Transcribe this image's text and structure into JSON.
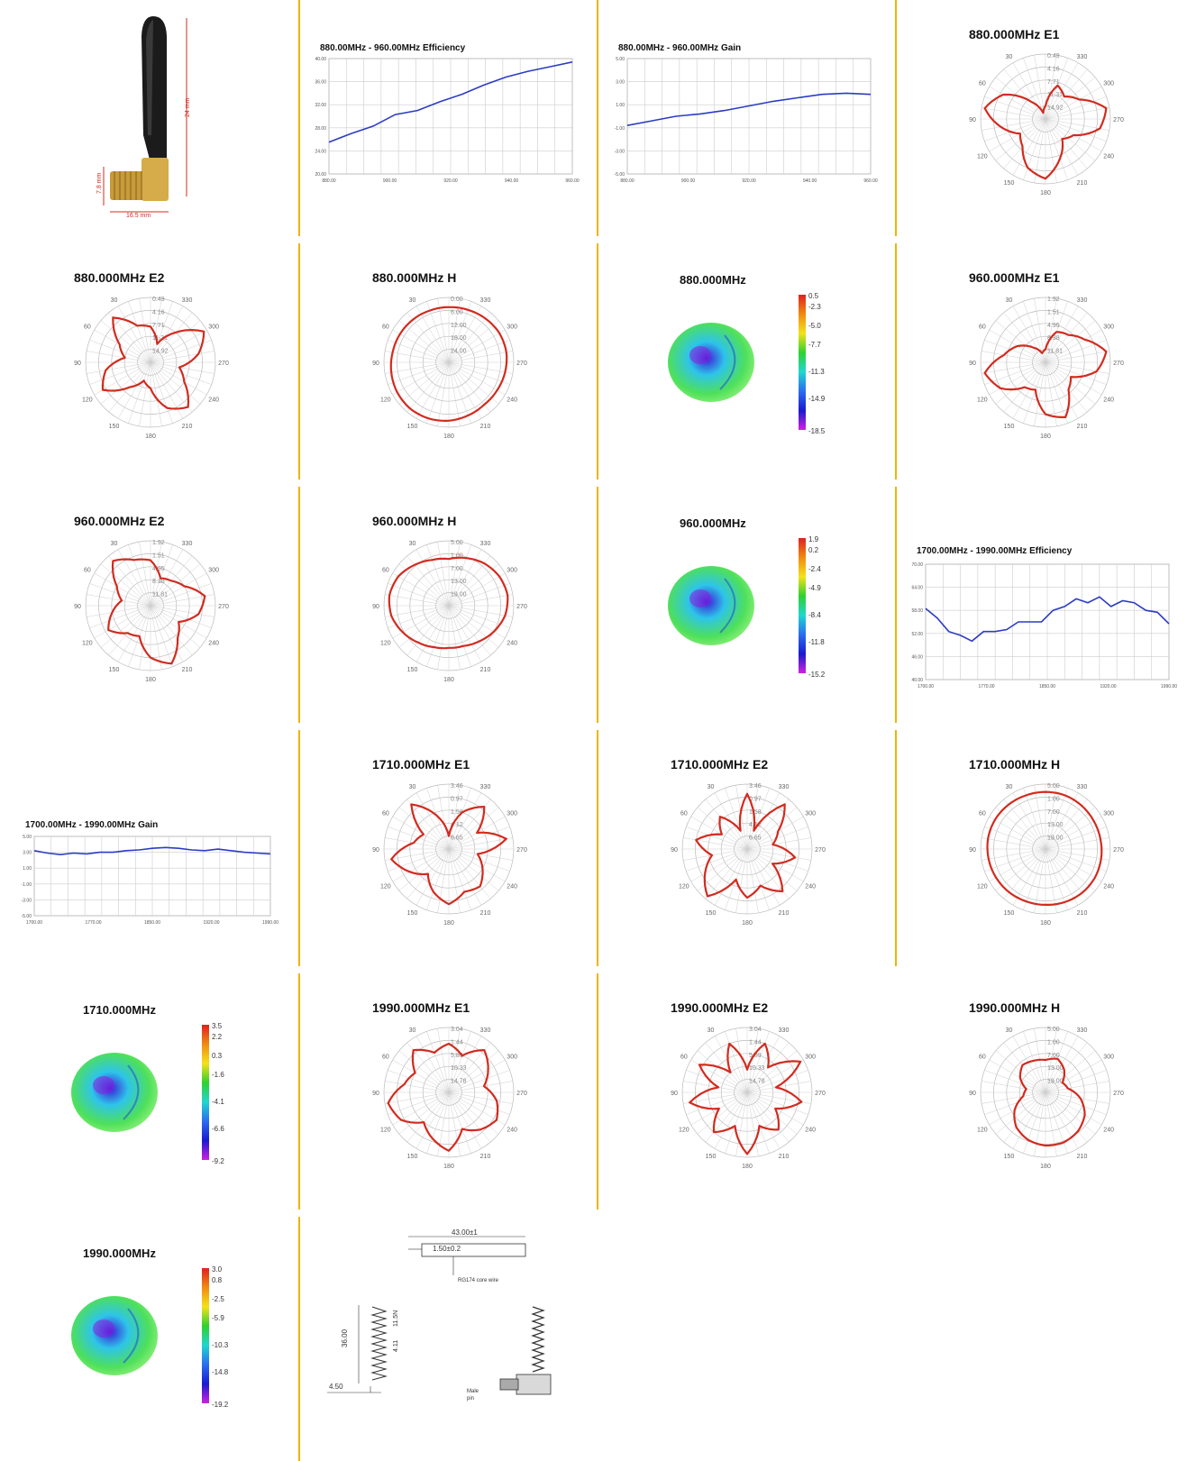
{
  "colors": {
    "separator": "#f0b400",
    "pattern": "#d22b1f",
    "curve": "#2b3cc4",
    "grid": "#cccccc"
  },
  "product": {
    "dimensions": [
      "24 mm",
      "7.8 mm",
      "16.5 mm"
    ]
  },
  "cells": [
    {
      "type": "photo"
    },
    {
      "type": "line",
      "title": "880.00MHz - 960.00MHz Efficiency",
      "yticks": [
        "40.00",
        "36.00",
        "32.00",
        "28.00",
        "24.00",
        "20.00"
      ],
      "xticks": [
        "880.00",
        "900.00",
        "920.00",
        "940.00",
        "960.00"
      ],
      "y": [
        25.5,
        27.0,
        28.3,
        30.3,
        31.0,
        32.5,
        33.8,
        35.4,
        36.8,
        37.8,
        38.6,
        39.4
      ],
      "ymin": 20,
      "ymax": 40
    },
    {
      "type": "line",
      "title": "880.00MHz - 960.00MHz Gain",
      "yticks": [
        "5.00",
        "3.00",
        "1.00",
        "-1.00",
        "-3.00",
        "-5.00"
      ],
      "xticks": [
        "880.00",
        "900.00",
        "920.00",
        "940.00",
        "960.00"
      ],
      "y": [
        -0.8,
        -0.4,
        0.0,
        0.2,
        0.5,
        0.9,
        1.3,
        1.6,
        1.9,
        2.0,
        1.9
      ],
      "ymin": -5,
      "ymax": 5
    },
    {
      "type": "polar",
      "title": "880.000MHz  E1",
      "rlabels": [
        "0.49",
        "4.16",
        "7.71",
        "11.31",
        "14.92"
      ],
      "r": [
        0.2,
        0.55,
        0.45,
        0.6,
        0.95,
        0.85,
        0.5,
        0.4,
        0.65,
        0.92,
        0.8,
        0.55,
        0.45,
        0.7,
        0.95,
        0.75,
        0.35,
        0.1
      ]
    },
    {
      "type": "polar",
      "title": "880.000MHz  E2",
      "rlabels": [
        "0.49",
        "4.16",
        "7.71",
        "11.31",
        "14.92"
      ],
      "r": [
        0.55,
        0.3,
        0.6,
        0.95,
        0.75,
        0.45,
        0.6,
        0.9,
        0.75,
        0.4,
        0.3,
        0.5,
        0.85,
        0.7,
        0.4,
        0.55,
        0.9,
        0.6
      ]
    },
    {
      "type": "polar",
      "title": "880.000MHz  H",
      "rlabels": [
        "0.00",
        "6.00",
        "12.00",
        "18.00",
        "24.00"
      ],
      "r": [
        0.85,
        0.86,
        0.88,
        0.9,
        0.9,
        0.88,
        0.86,
        0.85,
        0.87,
        0.9,
        0.92,
        0.93,
        0.92,
        0.9,
        0.88,
        0.87,
        0.86,
        0.85
      ]
    },
    {
      "type": "three",
      "title": "880.000MHz",
      "scale": [
        "0.5",
        "-2.3",
        "-5.0",
        "-7.7",
        "-11.3",
        "-14.9",
        "-18.5"
      ]
    },
    {
      "type": "polar",
      "title": "960.000MHz  E1",
      "rlabels": [
        "1.92",
        "1.51",
        "4.95",
        "8.38",
        "11.81"
      ],
      "r": [
        0.2,
        0.5,
        0.55,
        0.7,
        0.95,
        0.8,
        0.45,
        0.55,
        0.9,
        0.8,
        0.45,
        0.5,
        0.8,
        0.95,
        0.65,
        0.5,
        0.3,
        0.15
      ]
    },
    {
      "type": "polar",
      "title": "960.000MHz  E2",
      "rlabels": [
        "1.92",
        "1.51",
        "4.95",
        "8.38",
        "11.81"
      ],
      "r": [
        0.7,
        0.45,
        0.5,
        0.6,
        0.85,
        0.75,
        0.5,
        0.65,
        0.95,
        0.8,
        0.5,
        0.55,
        0.75,
        0.6,
        0.45,
        0.6,
        0.9,
        0.75
      ]
    },
    {
      "type": "polar",
      "title": "960.000MHz  H",
      "rlabels": [
        "5.00",
        "1.00",
        "7.00",
        "13.00",
        "19.00"
      ],
      "r": [
        0.72,
        0.78,
        0.85,
        0.9,
        0.92,
        0.88,
        0.8,
        0.72,
        0.66,
        0.65,
        0.68,
        0.74,
        0.82,
        0.9,
        0.93,
        0.9,
        0.82,
        0.75
      ]
    },
    {
      "type": "three",
      "title": "960.000MHz",
      "scale": [
        "1.9",
        "0.2",
        "-2.4",
        "-4.9",
        "-8.4",
        "-11.8",
        "-15.2"
      ]
    },
    {
      "type": "line",
      "title": "1700.00MHz - 1990.00MHz Efficiency",
      "yticks": [
        "70.00",
        "64.00",
        "58.00",
        "52.00",
        "46.00",
        "40.00"
      ],
      "xticks": [
        "1700.00",
        "1770.00",
        "1850.00",
        "1920.00",
        "1990.00"
      ],
      "y": [
        58.5,
        56.0,
        52.5,
        51.5,
        50.0,
        52.5,
        52.5,
        53.0,
        55.0,
        55.0,
        55.0,
        58.0,
        59.0,
        61.0,
        60.0,
        61.5,
        59.0,
        60.5,
        60.0,
        58.0,
        57.5,
        54.5
      ],
      "ymin": 40,
      "ymax": 70
    },
    {
      "type": "line",
      "title": "1700.00MHz - 1990.00MHz Gain",
      "yticks": [
        "5.00",
        "3.00",
        "1.00",
        "-1.00",
        "-3.00",
        "-5.00"
      ],
      "xticks": [
        "1700.00",
        "1770.00",
        "1850.00",
        "1920.00",
        "1990.00"
      ],
      "y": [
        3.2,
        2.9,
        2.7,
        2.9,
        2.8,
        3.0,
        3.0,
        3.2,
        3.3,
        3.5,
        3.6,
        3.5,
        3.3,
        3.2,
        3.4,
        3.2,
        3.0,
        2.9,
        2.8
      ],
      "ymin": -5,
      "ymax": 5
    },
    {
      "type": "polar",
      "title": "1710.000MHz  E1",
      "rlabels": [
        "3.46",
        "0.97",
        "1.58",
        "4.12",
        "6.65"
      ],
      "r": [
        0.2,
        0.6,
        0.85,
        0.5,
        0.9,
        0.45,
        0.6,
        0.75,
        0.7,
        0.85,
        0.7,
        0.5,
        0.7,
        0.9,
        0.55,
        0.45,
        0.9,
        0.55
      ]
    },
    {
      "type": "polar",
      "title": "1710.000MHz  E2",
      "rlabels": [
        "3.46",
        "0.97",
        "1.58",
        "4.12",
        "6.65"
      ],
      "r": [
        0.85,
        0.3,
        0.9,
        0.55,
        0.4,
        0.75,
        0.45,
        0.85,
        0.6,
        0.75,
        0.5,
        0.95,
        0.75,
        0.55,
        0.8,
        0.45,
        0.65,
        0.3
      ]
    },
    {
      "type": "polar",
      "title": "1710.000MHz  H",
      "rlabels": [
        "5.00",
        "1.00",
        "7.00",
        "13.00",
        "19.00"
      ],
      "r": [
        0.88,
        0.88,
        0.87,
        0.86,
        0.86,
        0.87,
        0.88,
        0.88,
        0.87,
        0.86,
        0.86,
        0.87,
        0.88,
        0.89,
        0.9,
        0.9,
        0.89,
        0.88
      ]
    },
    {
      "type": "three",
      "title": "1710.000MHz",
      "scale": [
        "3.5",
        "2.2",
        "0.3",
        "-1.6",
        "-4.1",
        "-6.6",
        "-9.2"
      ]
    },
    {
      "type": "polar",
      "title": "1990.000MHz  E1",
      "rlabels": [
        "3.04",
        "1.44",
        "5.89",
        "10.33",
        "14.78"
      ],
      "r": [
        0.75,
        0.6,
        0.85,
        0.7,
        0.55,
        0.75,
        0.85,
        0.75,
        0.6,
        0.9,
        0.75,
        0.6,
        0.85,
        0.95,
        0.7,
        0.6,
        0.85,
        0.65
      ]
    },
    {
      "type": "polar",
      "title": "1990.000MHz  E2",
      "rlabels": [
        "3.04",
        "1.44",
        "5.89",
        "10.33",
        "14.78"
      ],
      "r": [
        0.35,
        0.8,
        0.5,
        0.95,
        0.45,
        0.85,
        0.5,
        0.75,
        0.55,
        0.95,
        0.55,
        0.8,
        0.5,
        0.9,
        0.45,
        0.85,
        0.4,
        0.8
      ]
    },
    {
      "type": "polar",
      "title": "1990.000MHz  H",
      "rlabels": [
        "5.00",
        "1.00",
        "7.00",
        "13.00",
        "19.00"
      ],
      "r": [
        0.5,
        0.55,
        0.45,
        0.3,
        0.35,
        0.55,
        0.7,
        0.78,
        0.82,
        0.82,
        0.78,
        0.7,
        0.55,
        0.35,
        0.3,
        0.45,
        0.55,
        0.52
      ]
    },
    {
      "type": "three",
      "title": "1990.000MHz",
      "scale": [
        "3.0",
        "0.8",
        "-2.5",
        "-5.9",
        "-10.3",
        "-14.8",
        "-19.2"
      ]
    },
    {
      "type": "drawing",
      "texts": [
        "43.00±1",
        "1.50±0.2",
        "RG174 core wire",
        "36.00",
        "4.11",
        "11.5N",
        "4.50",
        "Male",
        "pin"
      ]
    }
  ]
}
